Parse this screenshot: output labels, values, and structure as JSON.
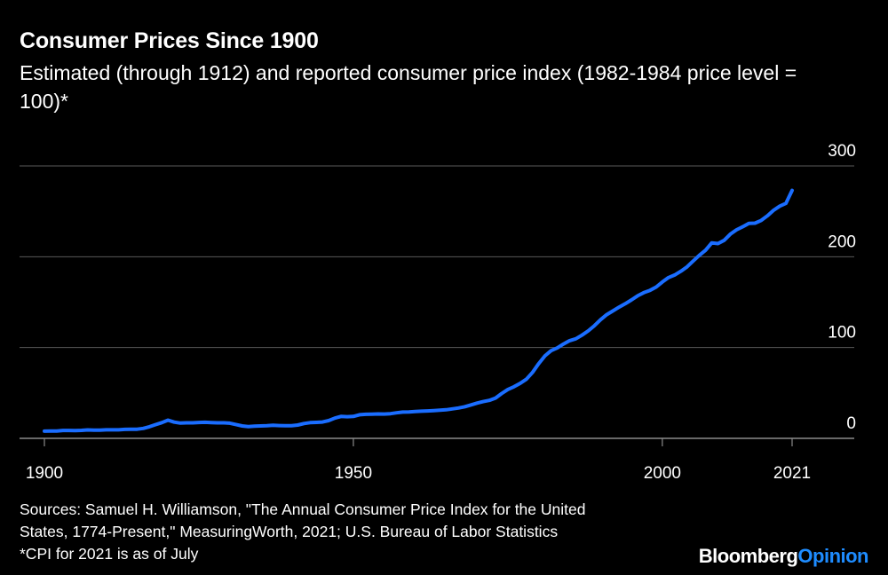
{
  "header": {
    "title": "Consumer Prices Since 1900",
    "subtitle": "Estimated (through 1912) and reported consumer price index (1982-1984 price level = 100)*"
  },
  "footer": {
    "sources_line1": "Sources: Samuel H. Williamson, \"The Annual Consumer Price Index for the United",
    "sources_line2": "States, 1774-Present,\" MeasuringWorth, 2021; U.S. Bureau of Labor Statistics",
    "note": "*CPI for 2021 is as of July"
  },
  "brand": {
    "part1": "Bloomberg",
    "part2": "Opinion"
  },
  "colors": {
    "background": "#000000",
    "line": "#1a6dff",
    "grid": "#5a5a5a",
    "text": "#ffffff",
    "brand_accent": "#1e8cff"
  },
  "chart_data": {
    "type": "line",
    "title": "Consumer Prices Since 1900",
    "subtitle": "Estimated (through 1912) and reported consumer price index (1982-1984 price level = 100)*",
    "xlabel": "",
    "ylabel": "",
    "xlim": [
      1900,
      2021
    ],
    "ylim": [
      0,
      300
    ],
    "x_ticks": [
      1900,
      1950,
      2000,
      2021
    ],
    "y_ticks": [
      0,
      100,
      200,
      300
    ],
    "y_axis_side": "right",
    "grid": true,
    "legend": "none",
    "series": [
      {
        "x": [
          1900,
          1901,
          1902,
          1903,
          1904,
          1905,
          1906,
          1907,
          1908,
          1909,
          1910,
          1911,
          1912,
          1913,
          1914,
          1915,
          1916,
          1917,
          1918,
          1919,
          1920,
          1921,
          1922,
          1923,
          1924,
          1925,
          1926,
          1927,
          1928,
          1929,
          1930,
          1931,
          1932,
          1933,
          1934,
          1935,
          1936,
          1937,
          1938,
          1939,
          1940,
          1941,
          1942,
          1943,
          1944,
          1945,
          1946,
          1947,
          1948,
          1949,
          1950,
          1951,
          1952,
          1953,
          1954,
          1955,
          1956,
          1957,
          1958,
          1959,
          1960,
          1961,
          1962,
          1963,
          1964,
          1965,
          1966,
          1967,
          1968,
          1969,
          1970,
          1971,
          1972,
          1973,
          1974,
          1975,
          1976,
          1977,
          1978,
          1979,
          1980,
          1981,
          1982,
          1983,
          1984,
          1985,
          1986,
          1987,
          1988,
          1989,
          1990,
          1991,
          1992,
          1993,
          1994,
          1995,
          1996,
          1997,
          1998,
          1999,
          2000,
          2001,
          2002,
          2003,
          2004,
          2005,
          2006,
          2007,
          2008,
          2009,
          2010,
          2011,
          2012,
          2013,
          2014,
          2015,
          2016,
          2017,
          2018,
          2019,
          2020,
          2021
        ],
        "values": [
          7.9,
          8.0,
          8.1,
          8.7,
          8.7,
          8.6,
          8.8,
          9.3,
          9.1,
          9.0,
          9.4,
          9.4,
          9.4,
          9.9,
          10.0,
          10.1,
          10.9,
          12.8,
          15.1,
          17.3,
          20.0,
          17.9,
          16.8,
          17.1,
          17.1,
          17.5,
          17.7,
          17.4,
          17.1,
          17.1,
          16.7,
          15.2,
          13.7,
          13.0,
          13.4,
          13.7,
          13.9,
          14.4,
          14.1,
          13.9,
          14.0,
          14.7,
          16.3,
          17.3,
          17.6,
          18.0,
          19.5,
          22.3,
          24.1,
          23.8,
          24.1,
          26.0,
          26.5,
          26.7,
          26.9,
          26.8,
          27.2,
          28.1,
          28.9,
          29.1,
          29.6,
          29.9,
          30.2,
          30.6,
          31.0,
          31.5,
          32.4,
          33.4,
          34.8,
          36.7,
          38.8,
          40.5,
          41.8,
          44.4,
          49.3,
          53.8,
          56.9,
          60.6,
          65.2,
          72.6,
          82.4,
          90.9,
          96.5,
          99.6,
          103.9,
          107.6,
          109.6,
          113.6,
          118.3,
          124.0,
          130.7,
          136.2,
          140.3,
          144.5,
          148.2,
          152.4,
          156.9,
          160.5,
          163.0,
          166.6,
          172.2,
          177.1,
          179.9,
          184.0,
          188.9,
          195.3,
          201.6,
          207.3,
          215.3,
          214.5,
          218.1,
          224.9,
          229.6,
          233.0,
          236.7,
          237.0,
          240.0,
          245.1,
          251.1,
          255.7,
          258.8,
          273.0
        ]
      }
    ]
  }
}
